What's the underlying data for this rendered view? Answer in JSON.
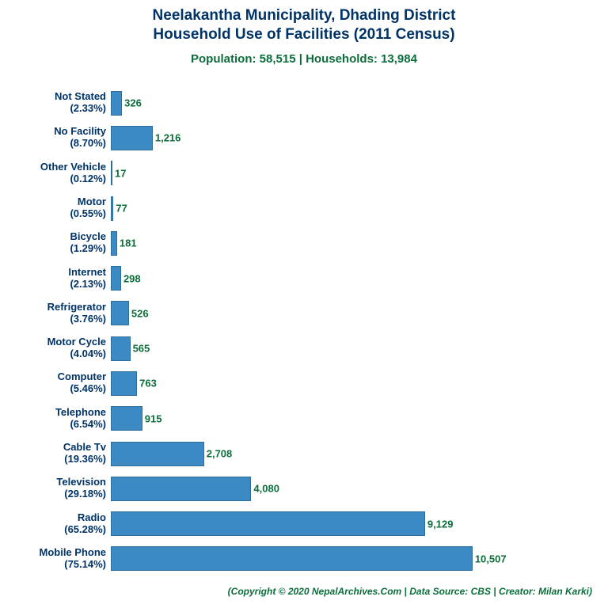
{
  "chart": {
    "type": "horizontal-bar",
    "title_line1": "Neelakantha Municipality, Dhading District",
    "title_line2": "Household Use of Facilities (2011 Census)",
    "title_color": "#003366",
    "title_fontsize": 19,
    "subtitle": "Population: 58,515 | Households: 13,984",
    "subtitle_color": "#0b6e3a",
    "subtitle_fontsize": 15,
    "bar_color": "#3b8ac4",
    "bar_border": "#2e6e9e",
    "value_color": "#0b6e3a",
    "label_color": "#003366",
    "label_fontsize": 13,
    "value_fontsize": 13,
    "xmax": 13984,
    "background": "#ffffff",
    "credit": "(Copyright © 2020 NepalArchives.Com | Data Source: CBS | Creator: Milan Karki)",
    "credit_color": "#0b6e3a",
    "credit_fontsize": 12,
    "bar_gap_ratio": 0.3,
    "items": [
      {
        "name": "Not Stated",
        "pct": "2.33%",
        "value": 326,
        "display": "326"
      },
      {
        "name": "No Facility",
        "pct": "8.70%",
        "value": 1216,
        "display": "1,216"
      },
      {
        "name": "Other Vehicle",
        "pct": "0.12%",
        "value": 17,
        "display": "17"
      },
      {
        "name": "Motor",
        "pct": "0.55%",
        "value": 77,
        "display": "77"
      },
      {
        "name": "Bicycle",
        "pct": "1.29%",
        "value": 181,
        "display": "181"
      },
      {
        "name": "Internet",
        "pct": "2.13%",
        "value": 298,
        "display": "298"
      },
      {
        "name": "Refrigerator",
        "pct": "3.76%",
        "value": 526,
        "display": "526"
      },
      {
        "name": "Motor Cycle",
        "pct": "4.04%",
        "value": 565,
        "display": "565"
      },
      {
        "name": "Computer",
        "pct": "5.46%",
        "value": 763,
        "display": "763"
      },
      {
        "name": "Telephone",
        "pct": "6.54%",
        "value": 915,
        "display": "915"
      },
      {
        "name": "Cable Tv",
        "pct": "19.36%",
        "value": 2708,
        "display": "2,708"
      },
      {
        "name": "Television",
        "pct": "29.18%",
        "value": 4080,
        "display": "4,080"
      },
      {
        "name": "Radio",
        "pct": "65.28%",
        "value": 9129,
        "display": "9,129"
      },
      {
        "name": "Mobile Phone",
        "pct": "75.14%",
        "value": 10507,
        "display": "10,507"
      }
    ]
  }
}
